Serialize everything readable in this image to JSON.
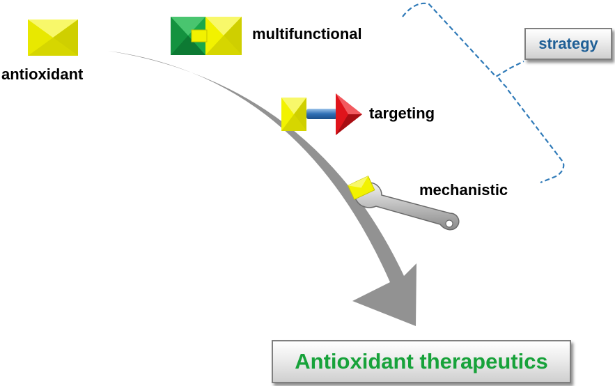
{
  "labels": {
    "antioxidant": "antioxidant",
    "multifunctional": "multifunctional",
    "targeting": "targeting",
    "mechanistic": "mechanistic",
    "strategy": "strategy",
    "therapeutics": "Antioxidant therapeutics"
  },
  "colors": {
    "antioxidant_yellow": "#f2f200",
    "multifunctional_green": "#1aa84a",
    "targeting_red": "#e0141b",
    "linker_blue": "#2f6fb5",
    "strategy_text": "#1f5f96",
    "therapeutics_text": "#17a23a",
    "arrow_gray": "#8c8c8c",
    "bracket_blue": "#2f7ab8"
  },
  "icons": {
    "antioxidant": "yellow-pyramid-block-icon",
    "multifunctional": "green-yellow-composite-block-icon",
    "targeting": "block-linker-triangle-icon",
    "mechanistic": "wrench-with-block-icon"
  }
}
